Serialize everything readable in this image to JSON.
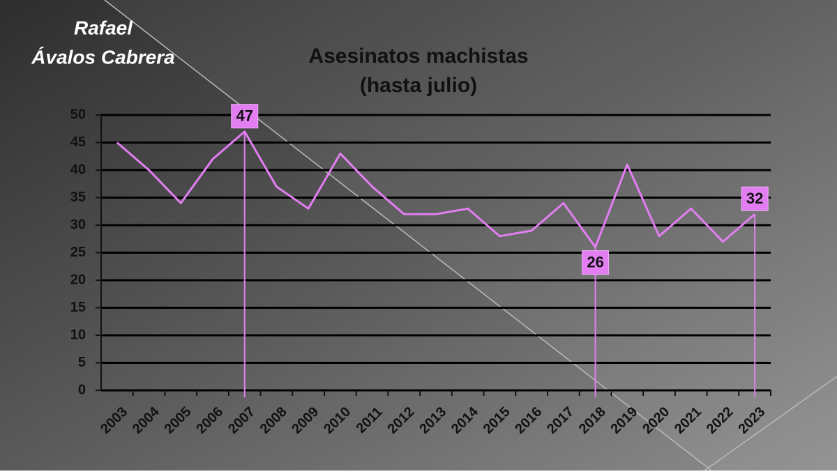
{
  "chart_data": {
    "type": "line",
    "title": "Asesinatos machistas",
    "subtitle": "(hasta julio)",
    "watermark": [
      "Rafael",
      "Ávalos Cabrera"
    ],
    "categories": [
      "2003",
      "2004",
      "2005",
      "2006",
      "2007",
      "2008",
      "2009",
      "2010",
      "2011",
      "2012",
      "2013",
      "2014",
      "2015",
      "2016",
      "2017",
      "2018",
      "2019",
      "2020",
      "2021",
      "2022",
      "2023"
    ],
    "series": [
      {
        "name": "Asesinatos machistas",
        "color": "#e27ef2",
        "values": [
          45,
          40,
          34,
          42,
          47,
          37,
          33,
          43,
          37,
          32,
          32,
          33,
          28,
          29,
          34,
          26,
          41,
          28,
          33,
          27,
          32
        ]
      }
    ],
    "highlight": [
      4,
      15,
      20
    ],
    "ylim": [
      0,
      50
    ],
    "yticks": [
      0,
      5,
      10,
      15,
      20,
      25,
      30,
      35,
      40,
      45,
      50
    ],
    "grid": true
  }
}
